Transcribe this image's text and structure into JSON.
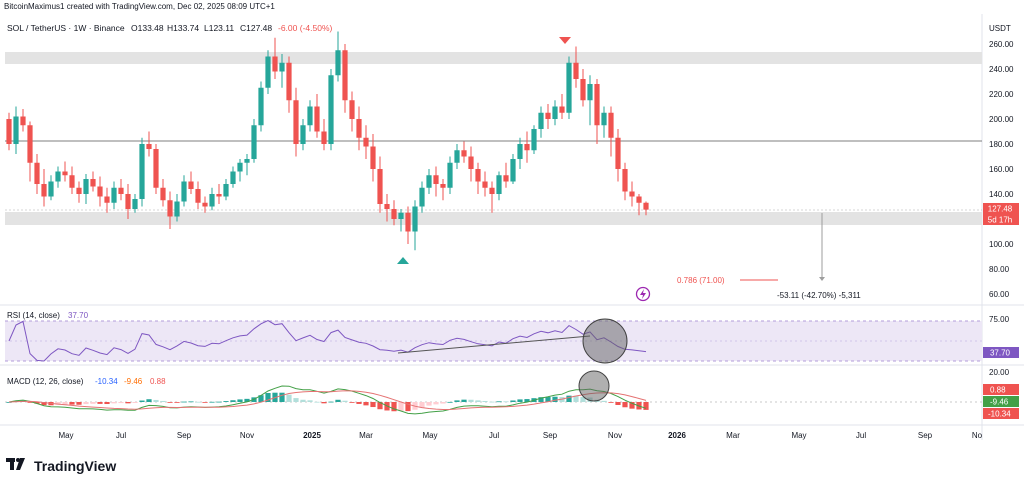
{
  "header": {
    "credit": "BitcoinMaximus1 created with TradingView.com, Dec 02, 2025 08:09 UTC+1",
    "symbol_line": "SOL / TetherUS · 1W · Binance",
    "ohlc": {
      "o": "O133.48",
      "h": "H133.74",
      "l": "L123.11",
      "c": "C127.48",
      "chg": "-6.00 (-4.50%)"
    }
  },
  "price_axis": {
    "currency": "USDT",
    "ticks": [
      "260.00",
      "240.00",
      "220.00",
      "200.00",
      "180.00",
      "160.00",
      "140.00",
      "120.00",
      "100.00",
      "80.00",
      "60.00"
    ],
    "current_price": "127.48",
    "countdown": "5d 17h"
  },
  "time_axis": {
    "labels": [
      "May",
      "Jul",
      "Sep",
      "Nov",
      "2025",
      "Mar",
      "May",
      "Jul",
      "Sep",
      "Nov",
      "2026",
      "Mar",
      "May",
      "Jul",
      "Sep",
      "No"
    ]
  },
  "annotations": {
    "fib": "0.786 (71.00)",
    "measure": "-53.11 (-42.70%) -5,311"
  },
  "rsi": {
    "label": "RSI (14, close)",
    "value": "37.70",
    "ticks": [
      "75.00"
    ]
  },
  "macd": {
    "label": "MACD (12, 26, close)",
    "values": [
      "-10.34",
      "-9.46",
      "0.88"
    ],
    "ticks": [
      "20.00"
    ],
    "badges": [
      "0.88",
      "-9.46",
      "-10.34"
    ]
  },
  "brand": {
    "name": "TradingView"
  },
  "colors": {
    "up": "#26a69a",
    "down": "#ef5350",
    "rsi": "#7e57c2",
    "macd": "#2962ff",
    "signal": "#ff6d00"
  },
  "chart_data": {
    "type": "candlestick",
    "symbol": "SOL / TetherUS",
    "interval": "1W",
    "ylim": [
      60,
      270
    ],
    "candles": [
      [
        200,
        205,
        175,
        180
      ],
      [
        180,
        210,
        172,
        202
      ],
      [
        202,
        208,
        190,
        195
      ],
      [
        195,
        198,
        150,
        165
      ],
      [
        165,
        172,
        140,
        148
      ],
      [
        148,
        160,
        130,
        138
      ],
      [
        138,
        155,
        135,
        150
      ],
      [
        150,
        162,
        145,
        158
      ],
      [
        158,
        166,
        150,
        155
      ],
      [
        155,
        162,
        140,
        145
      ],
      [
        145,
        150,
        133,
        140
      ],
      [
        140,
        156,
        132,
        152
      ],
      [
        152,
        158,
        142,
        146
      ],
      [
        146,
        154,
        130,
        138
      ],
      [
        138,
        145,
        125,
        133
      ],
      [
        133,
        150,
        128,
        145
      ],
      [
        145,
        152,
        135,
        140
      ],
      [
        140,
        148,
        120,
        128
      ],
      [
        128,
        140,
        125,
        136
      ],
      [
        136,
        185,
        130,
        180
      ],
      [
        180,
        190,
        170,
        176
      ],
      [
        176,
        180,
        140,
        145
      ],
      [
        145,
        152,
        130,
        135
      ],
      [
        135,
        142,
        112,
        122
      ],
      [
        122,
        140,
        118,
        134
      ],
      [
        134,
        155,
        130,
        150
      ],
      [
        150,
        158,
        140,
        144
      ],
      [
        144,
        150,
        128,
        133
      ],
      [
        133,
        138,
        125,
        130
      ],
      [
        130,
        145,
        127,
        140
      ],
      [
        140,
        148,
        132,
        138
      ],
      [
        138,
        152,
        135,
        148
      ],
      [
        148,
        162,
        145,
        158
      ],
      [
        158,
        168,
        150,
        165
      ],
      [
        165,
        172,
        155,
        168
      ],
      [
        168,
        200,
        165,
        195
      ],
      [
        195,
        230,
        190,
        225
      ],
      [
        225,
        255,
        220,
        250
      ],
      [
        250,
        265,
        232,
        238
      ],
      [
        238,
        252,
        225,
        245
      ],
      [
        245,
        250,
        205,
        215
      ],
      [
        215,
        225,
        170,
        180
      ],
      [
        180,
        200,
        175,
        195
      ],
      [
        195,
        215,
        190,
        210
      ],
      [
        210,
        220,
        185,
        190
      ],
      [
        190,
        200,
        175,
        180
      ],
      [
        180,
        240,
        175,
        235
      ],
      [
        235,
        270,
        230,
        255
      ],
      [
        255,
        260,
        205,
        215
      ],
      [
        215,
        222,
        190,
        200
      ],
      [
        200,
        210,
        175,
        185
      ],
      [
        185,
        195,
        168,
        178
      ],
      [
        178,
        188,
        150,
        160
      ],
      [
        160,
        170,
        125,
        132
      ],
      [
        132,
        140,
        118,
        128
      ],
      [
        128,
        135,
        115,
        120
      ],
      [
        120,
        128,
        110,
        125
      ],
      [
        125,
        130,
        100,
        110
      ],
      [
        110,
        135,
        95,
        130
      ],
      [
        130,
        150,
        125,
        145
      ],
      [
        145,
        160,
        140,
        155
      ],
      [
        155,
        162,
        138,
        148
      ],
      [
        148,
        152,
        135,
        145
      ],
      [
        145,
        170,
        140,
        165
      ],
      [
        165,
        180,
        160,
        175
      ],
      [
        175,
        182,
        165,
        170
      ],
      [
        170,
        178,
        150,
        160
      ],
      [
        160,
        165,
        140,
        150
      ],
      [
        150,
        158,
        138,
        145
      ],
      [
        145,
        150,
        125,
        140
      ],
      [
        140,
        158,
        135,
        155
      ],
      [
        155,
        165,
        145,
        150
      ],
      [
        150,
        172,
        148,
        168
      ],
      [
        168,
        185,
        160,
        180
      ],
      [
        180,
        190,
        165,
        175
      ],
      [
        175,
        195,
        172,
        192
      ],
      [
        192,
        210,
        185,
        205
      ],
      [
        205,
        212,
        192,
        200
      ],
      [
        200,
        215,
        195,
        210
      ],
      [
        210,
        220,
        200,
        205
      ],
      [
        205,
        250,
        200,
        245
      ],
      [
        245,
        258,
        225,
        232
      ],
      [
        232,
        240,
        210,
        215
      ],
      [
        215,
        235,
        195,
        228
      ],
      [
        228,
        232,
        180,
        195
      ],
      [
        195,
        210,
        185,
        205
      ],
      [
        205,
        210,
        170,
        185
      ],
      [
        185,
        192,
        150,
        160
      ],
      [
        160,
        165,
        135,
        142
      ],
      [
        142,
        150,
        130,
        138
      ],
      [
        138,
        140,
        123,
        133
      ],
      [
        133,
        134,
        123,
        127.48
      ]
    ]
  }
}
